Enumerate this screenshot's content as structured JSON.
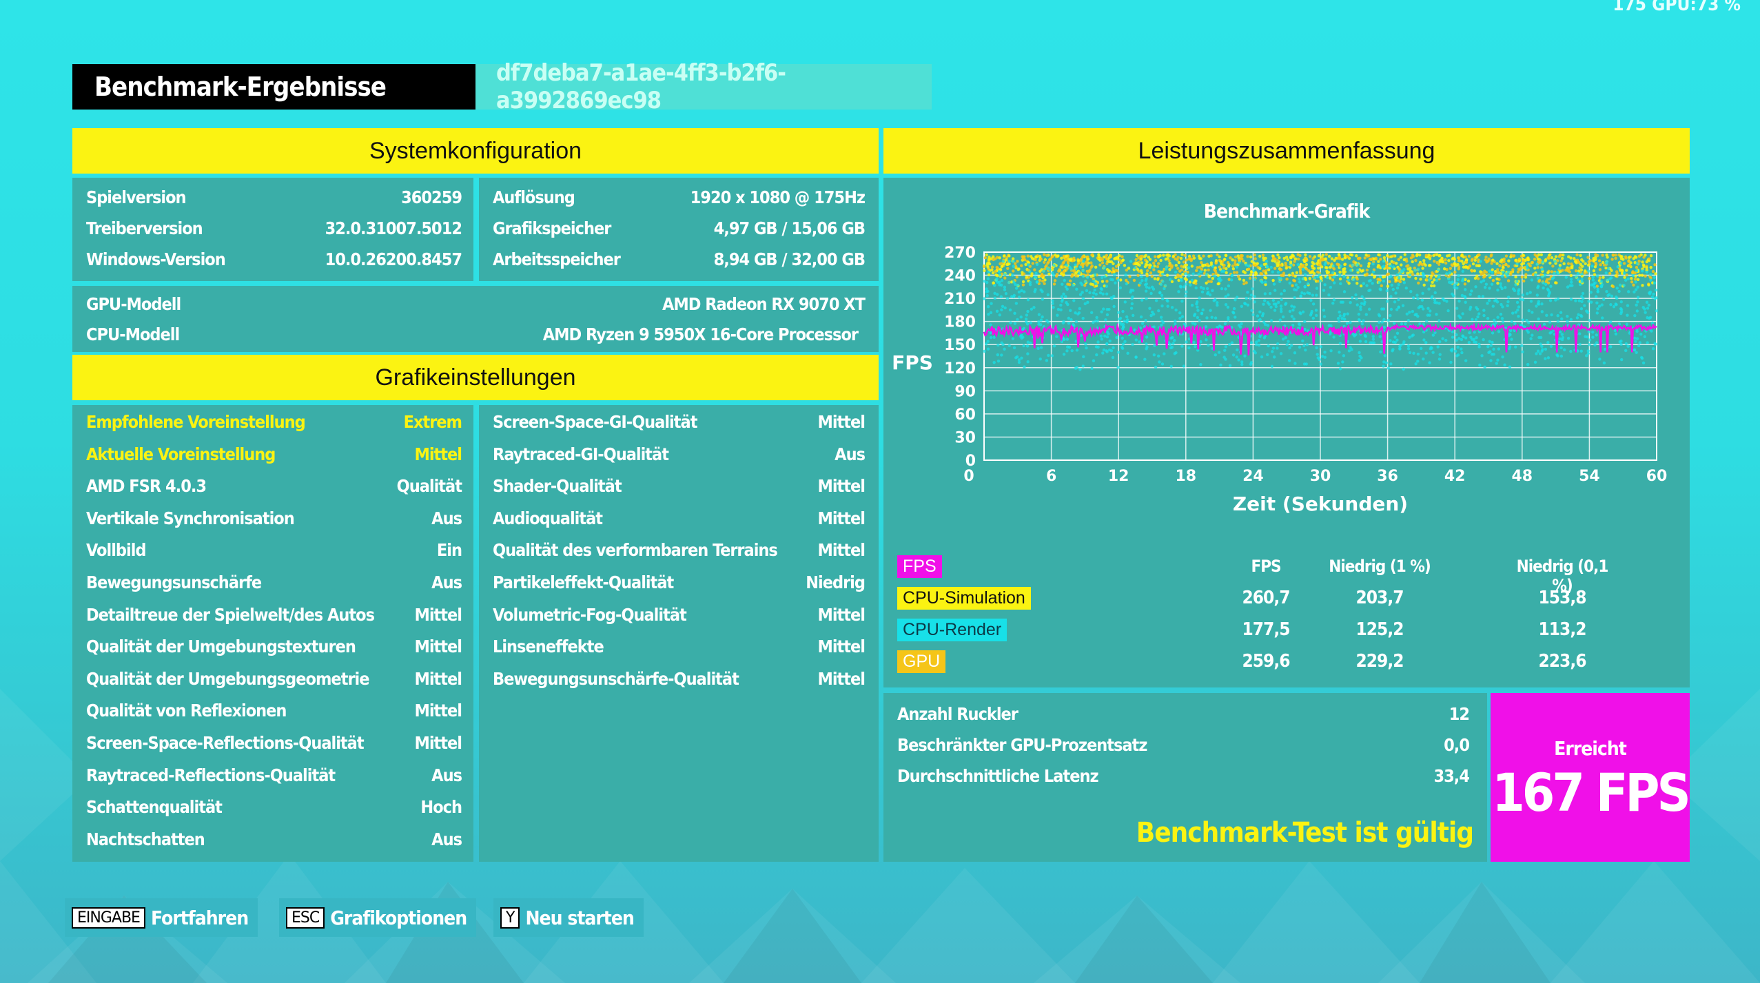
{
  "overlay": "175 GPU:73 %",
  "header": {
    "title": "Benchmark-Ergebnisse",
    "guid": "df7deba7-a1ae-4ff3-b2f6-a3992869ec98"
  },
  "system": {
    "heading": "Systemkonfiguration",
    "left": [
      {
        "label": "Spielversion",
        "value": "360259"
      },
      {
        "label": "Treiberversion",
        "value": "32.0.31007.5012"
      },
      {
        "label": "Windows-Version",
        "value": "10.0.26200.8457"
      }
    ],
    "right": [
      {
        "label": "Auflösung",
        "value": "1920 x 1080 @ 175Hz"
      },
      {
        "label": "Grafikspeicher",
        "value": "4,97 GB / 15,06 GB"
      },
      {
        "label": "Arbeitsspeicher",
        "value": "8,94 GB / 32,00 GB"
      }
    ],
    "gpu": {
      "label": "GPU-Modell",
      "value": "AMD Radeon RX 9070 XT"
    },
    "cpu": {
      "label": "CPU-Modell",
      "value": "AMD Ryzen 9 5950X 16-Core Processor"
    }
  },
  "graphics": {
    "heading": "Grafikeinstellungen",
    "left": [
      {
        "label": "Empfohlene Voreinstellung",
        "value": "Extrem"
      },
      {
        "label": "Aktuelle Voreinstellung",
        "value": "Mittel"
      },
      {
        "label": "AMD FSR 4.0.3",
        "value": "Qualität"
      },
      {
        "label": "Vertikale Synchronisation",
        "value": "Aus"
      },
      {
        "label": "Vollbild",
        "value": "Ein"
      },
      {
        "label": "Bewegungsunschärfe",
        "value": "Aus"
      },
      {
        "label": "Detailtreue der Spielwelt/des Autos",
        "value": "Mittel"
      },
      {
        "label": "Qualität der Umgebungstexturen",
        "value": "Mittel"
      },
      {
        "label": "Qualität der Umgebungsgeometrie",
        "value": "Mittel"
      },
      {
        "label": "Qualität von Reflexionen",
        "value": "Mittel"
      },
      {
        "label": "Screen-Space-Reflections-Qualität",
        "value": "Mittel"
      },
      {
        "label": "Raytraced-Reflections-Qualität",
        "value": "Aus"
      },
      {
        "label": "Schattenqualität",
        "value": "Hoch"
      },
      {
        "label": "Nachtschatten",
        "value": "Aus"
      }
    ],
    "right": [
      {
        "label": "Screen-Space-GI-Qualität",
        "value": "Mittel"
      },
      {
        "label": "Raytraced-GI-Qualität",
        "value": "Aus"
      },
      {
        "label": "Shader-Qualität",
        "value": "Mittel"
      },
      {
        "label": "Audioqualität",
        "value": "Mittel"
      },
      {
        "label": "Qualität des verformbaren Terrains",
        "value": "Mittel"
      },
      {
        "label": "Partikeleffekt-Qualität",
        "value": "Niedrig"
      },
      {
        "label": "Volumetric-Fog-Qualität",
        "value": "Mittel"
      },
      {
        "label": "Linseneffekte",
        "value": "Mittel"
      },
      {
        "label": "Bewegungsunschärfe-Qualität",
        "value": "Mittel"
      }
    ]
  },
  "performance": {
    "heading": "Leistungszusammenfassung",
    "chart_title": "Benchmark-Grafik",
    "ylabel": "FPS",
    "xlabel": "Zeit (Sekunden)",
    "stats_headers": [
      "FPS",
      "Niedrig (1 %)",
      "Niedrig (0,1 %)"
    ],
    "stats": [
      {
        "name": "FPS",
        "color": "#f010e8",
        "values": [
          "",
          "",
          ""
        ]
      },
      {
        "name": "CPU-Simulation",
        "color": "#fbf312",
        "values": [
          "260,7",
          "203,7",
          "153,8"
        ]
      },
      {
        "name": "CPU-Render",
        "color": "#18e0e8",
        "values": [
          "177,5",
          "125,2",
          "113,2"
        ]
      },
      {
        "name": "GPU",
        "color": "#f5c518",
        "values": [
          "259,6",
          "229,2",
          "223,6"
        ]
      }
    ],
    "summary": [
      {
        "label": "Anzahl Ruckler",
        "value": "12"
      },
      {
        "label": "Beschränkter GPU-Prozentsatz",
        "value": "0,0"
      },
      {
        "label": "Durchschnittliche Latenz",
        "value": "33,4"
      }
    ],
    "valid_text": "Benchmark-Test ist gültig",
    "achieved_label": "Erreicht",
    "achieved_value": "167 FPS"
  },
  "footer": [
    {
      "key": "EINGABE",
      "label": "Fortfahren"
    },
    {
      "key": "ESC",
      "label": "Grafikoptionen"
    },
    {
      "key": "Y",
      "label": "Neu starten"
    }
  ],
  "chart_data": {
    "type": "line",
    "title": "Benchmark-Grafik",
    "xlabel": "Zeit (Sekunden)",
    "ylabel": "FPS",
    "x_ticks": [
      0,
      6,
      12,
      18,
      24,
      30,
      36,
      42,
      48,
      54,
      60
    ],
    "y_ticks": [
      0,
      30,
      60,
      90,
      120,
      150,
      180,
      210,
      240,
      270
    ],
    "xlim": [
      0,
      60
    ],
    "ylim": [
      0,
      270
    ],
    "grid": true,
    "series": [
      {
        "name": "FPS",
        "color": "#f010e8",
        "kind": "line",
        "approx_mean": 167,
        "approx_range": [
          115,
          185
        ]
      },
      {
        "name": "CPU-Simulation",
        "color": "#fbf312",
        "kind": "scatter",
        "approx_range": [
          210,
          270
        ]
      },
      {
        "name": "CPU-Render",
        "color": "#18e0e8",
        "kind": "scatter",
        "approx_range": [
          110,
          260
        ]
      },
      {
        "name": "GPU",
        "color": "#f5c518",
        "kind": "scatter",
        "approx_range": [
          220,
          268
        ]
      }
    ]
  }
}
